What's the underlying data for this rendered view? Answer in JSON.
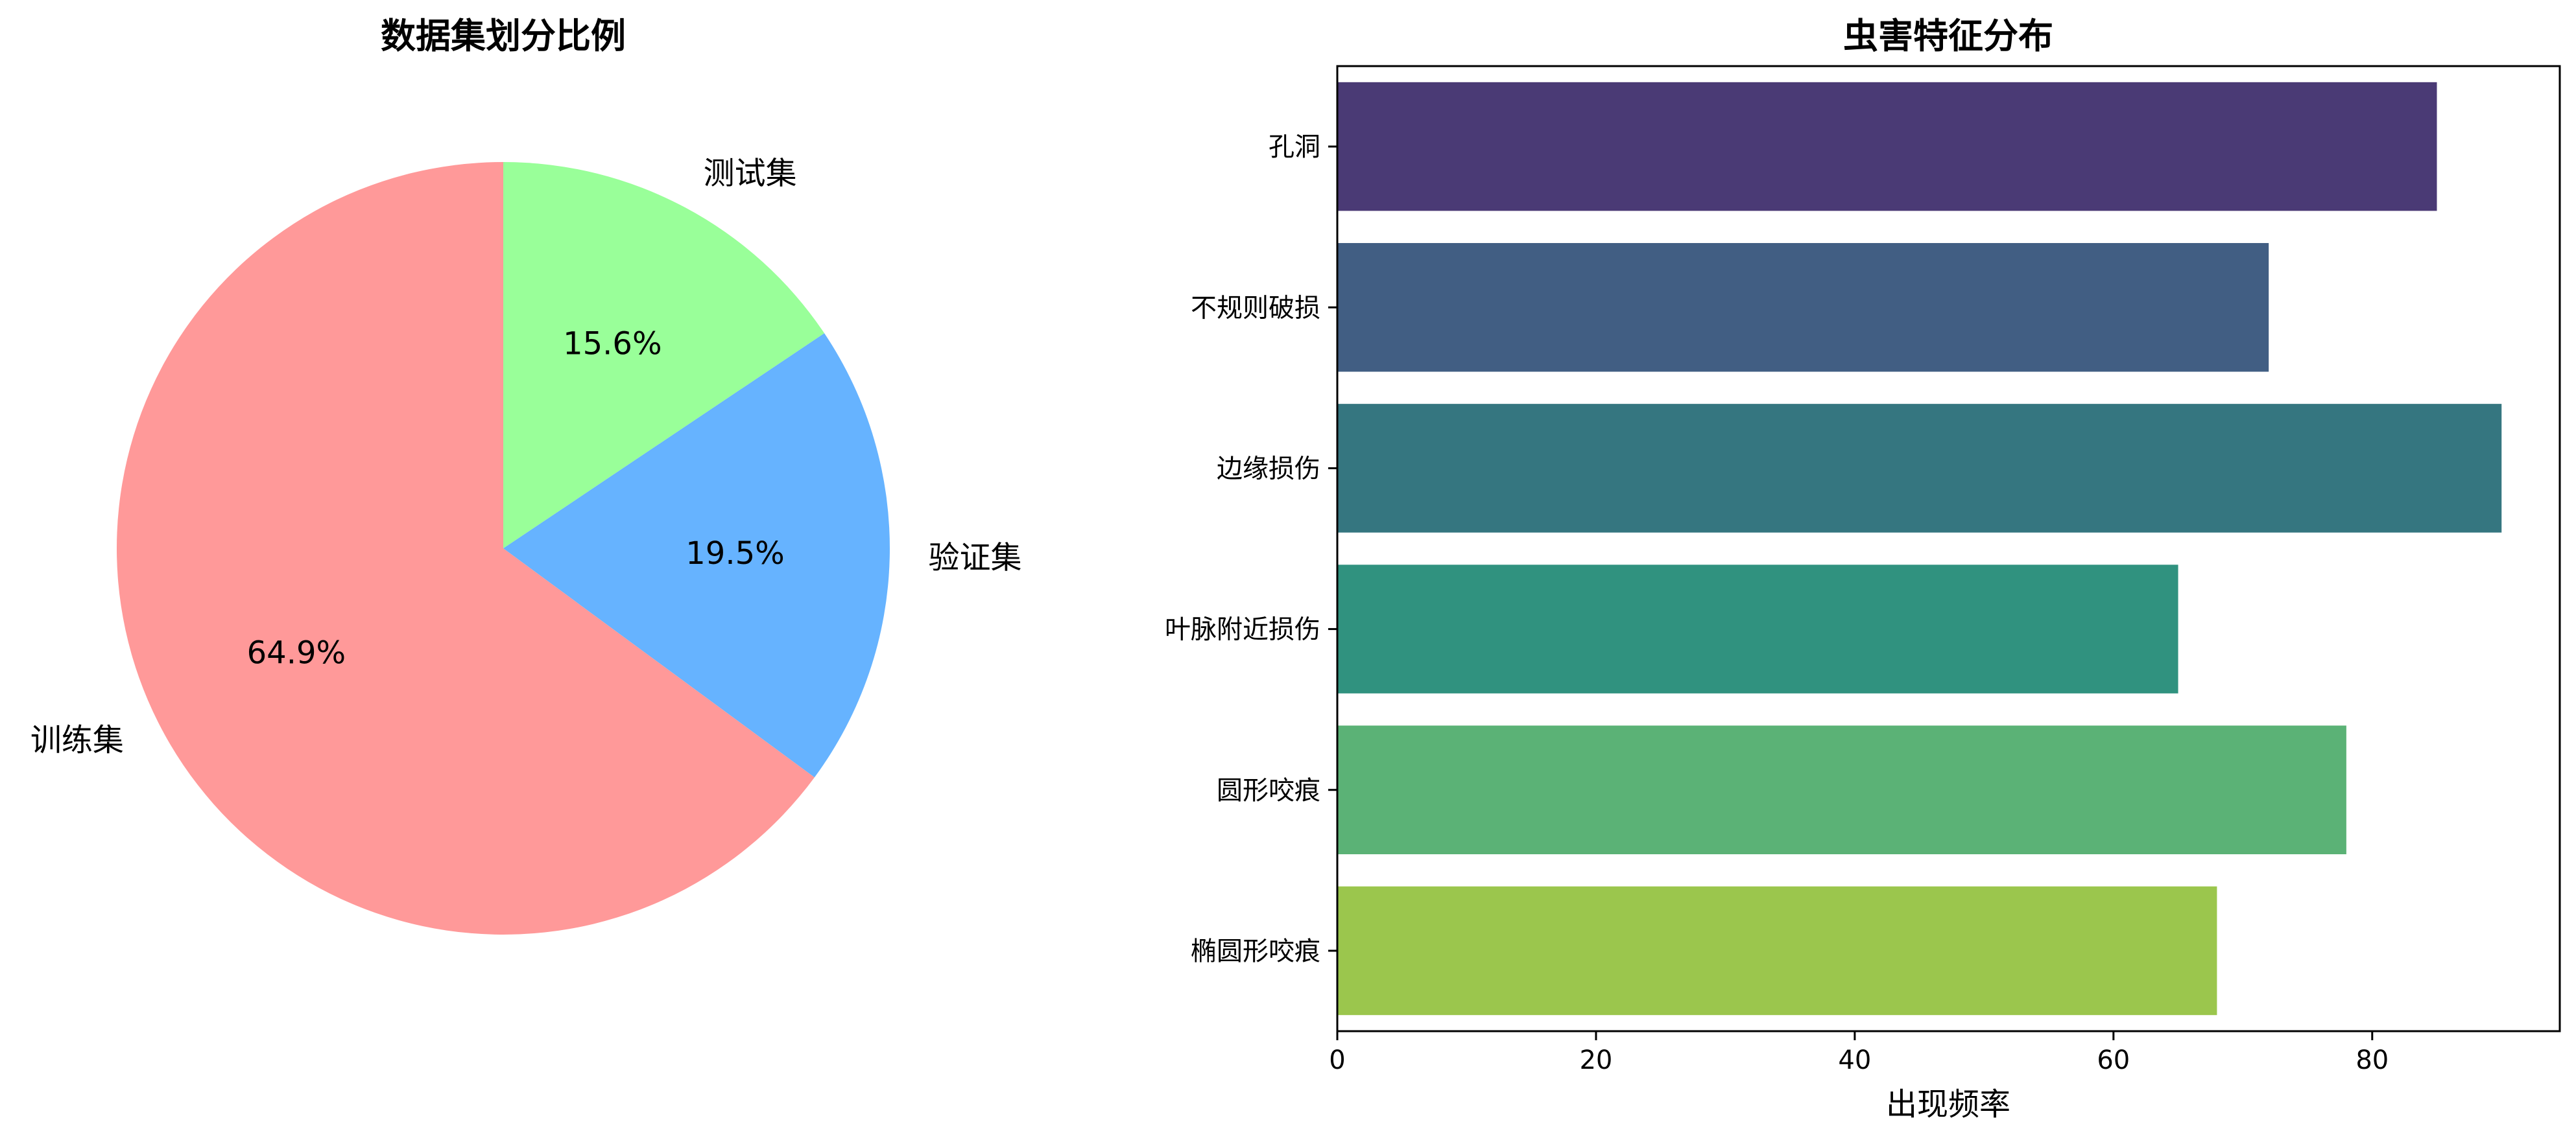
{
  "chart_data": [
    {
      "type": "pie",
      "title": "数据集划分比例",
      "slices": [
        {
          "label": "训练集",
          "value": 64.9,
          "pct_label": "64.9%",
          "color": "#ff9999"
        },
        {
          "label": "验证集",
          "value": 19.5,
          "pct_label": "19.5%",
          "color": "#66b3ff"
        },
        {
          "label": "测试集",
          "value": 15.6,
          "pct_label": "15.6%",
          "color": "#99ff99"
        }
      ],
      "start_angle_deg": 90,
      "direction": "counterclockwise"
    },
    {
      "type": "bar",
      "orientation": "horizontal",
      "title": "虫害特征分布",
      "categories": [
        "孔洞",
        "不规则破损",
        "边缘损伤",
        "叶脉附近损伤",
        "圆形咬痕",
        "椭圆形咬痕"
      ],
      "values": [
        85,
        72,
        90,
        65,
        78,
        68
      ],
      "colors": [
        "#4a3a75",
        "#415e83",
        "#357680",
        "#30927f",
        "#5bb276",
        "#9bc64d"
      ],
      "xlabel": "出现频率",
      "ylabel": "",
      "xlim": [
        0,
        94.5
      ],
      "xticks": [
        0,
        20,
        40,
        60,
        80
      ],
      "grid": false
    }
  ]
}
